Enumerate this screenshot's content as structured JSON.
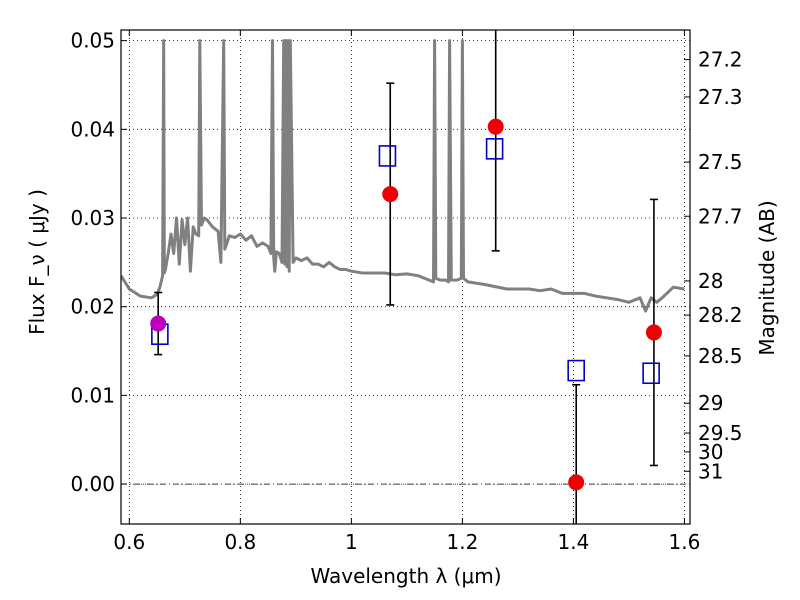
{
  "chart_data": {
    "type": "scatter",
    "xlabel": "Wavelength  λ (μm)",
    "ylabel": "Flux  F_ν  ( μJy )",
    "y2label": "Magnitude (AB)",
    "xlim": [
      0.585,
      1.61
    ],
    "ylim": [
      -0.0045,
      0.0512
    ],
    "grid": true,
    "x_ticks": [
      0.6,
      0.8,
      1.0,
      1.2,
      1.4,
      1.6
    ],
    "x_tick_labels": [
      "0.6",
      "0.8",
      "1",
      "1.2",
      "1.4",
      "1.6"
    ],
    "y_ticks": [
      0.0,
      0.01,
      0.02,
      0.03,
      0.04,
      0.05
    ],
    "y_tick_labels": [
      "0.00",
      "0.01",
      "0.02",
      "0.03",
      "0.04",
      "0.05"
    ],
    "y2_ticks": [
      {
        "mag": 27.2,
        "label": "27.2"
      },
      {
        "mag": 27.3,
        "label": "27.3"
      },
      {
        "mag": 27.5,
        "label": "27.5"
      },
      {
        "mag": 27.7,
        "label": "27.7"
      },
      {
        "mag": 28.0,
        "label": "28"
      },
      {
        "mag": 28.2,
        "label": "28.2"
      },
      {
        "mag": 28.5,
        "label": "28.5"
      },
      {
        "mag": 29.0,
        "label": "29"
      },
      {
        "mag": 29.5,
        "label": "29.5"
      },
      {
        "mag": 30.0,
        "label": "30"
      },
      {
        "mag": 31.0,
        "label": "31"
      }
    ],
    "zero_line": 0.0,
    "series": [
      {
        "kind": "line",
        "color": "#808080",
        "x": [
          0.585,
          0.6,
          0.62,
          0.64,
          0.65,
          0.655,
          0.66,
          0.662,
          0.663,
          0.665,
          0.67,
          0.675,
          0.68,
          0.685,
          0.69,
          0.695,
          0.7,
          0.705,
          0.71,
          0.715,
          0.72,
          0.725,
          0.727,
          0.73,
          0.735,
          0.74,
          0.75,
          0.76,
          0.765,
          0.77,
          0.772,
          0.775,
          0.78,
          0.79,
          0.8,
          0.81,
          0.82,
          0.83,
          0.84,
          0.85,
          0.855,
          0.858,
          0.86,
          0.862,
          0.865,
          0.87,
          0.875,
          0.878,
          0.88,
          0.882,
          0.884,
          0.886,
          0.888,
          0.89,
          0.895,
          0.9,
          0.91,
          0.92,
          0.93,
          0.94,
          0.95,
          0.96,
          0.97,
          0.98,
          0.99,
          1.0,
          1.02,
          1.04,
          1.06,
          1.08,
          1.1,
          1.12,
          1.14,
          1.148,
          1.15,
          1.152,
          1.16,
          1.17,
          1.175,
          1.177,
          1.18,
          1.19,
          1.198,
          1.2,
          1.202,
          1.21,
          1.24,
          1.28,
          1.3,
          1.32,
          1.34,
          1.36,
          1.38,
          1.4,
          1.42,
          1.44,
          1.46,
          1.48,
          1.5,
          1.52,
          1.53,
          1.54,
          1.55,
          1.56,
          1.58,
          1.6
        ],
        "y": [
          0.0235,
          0.022,
          0.0212,
          0.021,
          0.0214,
          0.0222,
          0.0235,
          0.05,
          0.0238,
          0.0242,
          0.026,
          0.0282,
          0.026,
          0.03,
          0.0248,
          0.0298,
          0.027,
          0.03,
          0.024,
          0.029,
          0.0282,
          0.028,
          0.05,
          0.0292,
          0.03,
          0.0298,
          0.029,
          0.0285,
          0.025,
          0.05,
          0.0265,
          0.027,
          0.028,
          0.0278,
          0.0282,
          0.0275,
          0.028,
          0.0268,
          0.0272,
          0.0268,
          0.026,
          0.05,
          0.0255,
          0.024,
          0.0262,
          0.026,
          0.025,
          0.05,
          0.0248,
          0.05,
          0.0245,
          0.05,
          0.024,
          0.05,
          0.025,
          0.0255,
          0.0252,
          0.0255,
          0.0248,
          0.0248,
          0.0245,
          0.025,
          0.0245,
          0.0242,
          0.0242,
          0.024,
          0.0238,
          0.0238,
          0.0238,
          0.0236,
          0.0237,
          0.0235,
          0.023,
          0.0228,
          0.05,
          0.0232,
          0.023,
          0.023,
          0.0228,
          0.05,
          0.023,
          0.023,
          0.0232,
          0.05,
          0.0232,
          0.0228,
          0.0225,
          0.022,
          0.022,
          0.022,
          0.0218,
          0.022,
          0.0215,
          0.0215,
          0.0215,
          0.0212,
          0.021,
          0.0208,
          0.0205,
          0.021,
          0.0195,
          0.021,
          0.0205,
          0.021,
          0.0222,
          0.022
        ]
      },
      {
        "kind": "open-squares",
        "color": "#0000cc",
        "x": [
          0.655,
          1.065,
          1.258,
          1.405,
          1.54
        ],
        "y": [
          0.0169,
          0.037,
          0.0378,
          0.0128,
          0.0125
        ]
      },
      {
        "kind": "filled-circles",
        "color": "#ee0000",
        "x": [
          1.07,
          1.26,
          1.405,
          1.545
        ],
        "y": [
          0.0327,
          0.0403,
          0.0002,
          0.0171
        ],
        "yerr_low": [
          0.0125,
          0.014,
          0.011,
          0.015
        ],
        "yerr_high": [
          0.0125,
          0.014,
          0.011,
          0.015
        ]
      },
      {
        "kind": "filled-circles",
        "color": "#bb00bb",
        "x": [
          0.652
        ],
        "y": [
          0.0181
        ],
        "yerr_low": [
          0.0035
        ],
        "yerr_high": [
          0.0035
        ]
      }
    ]
  }
}
